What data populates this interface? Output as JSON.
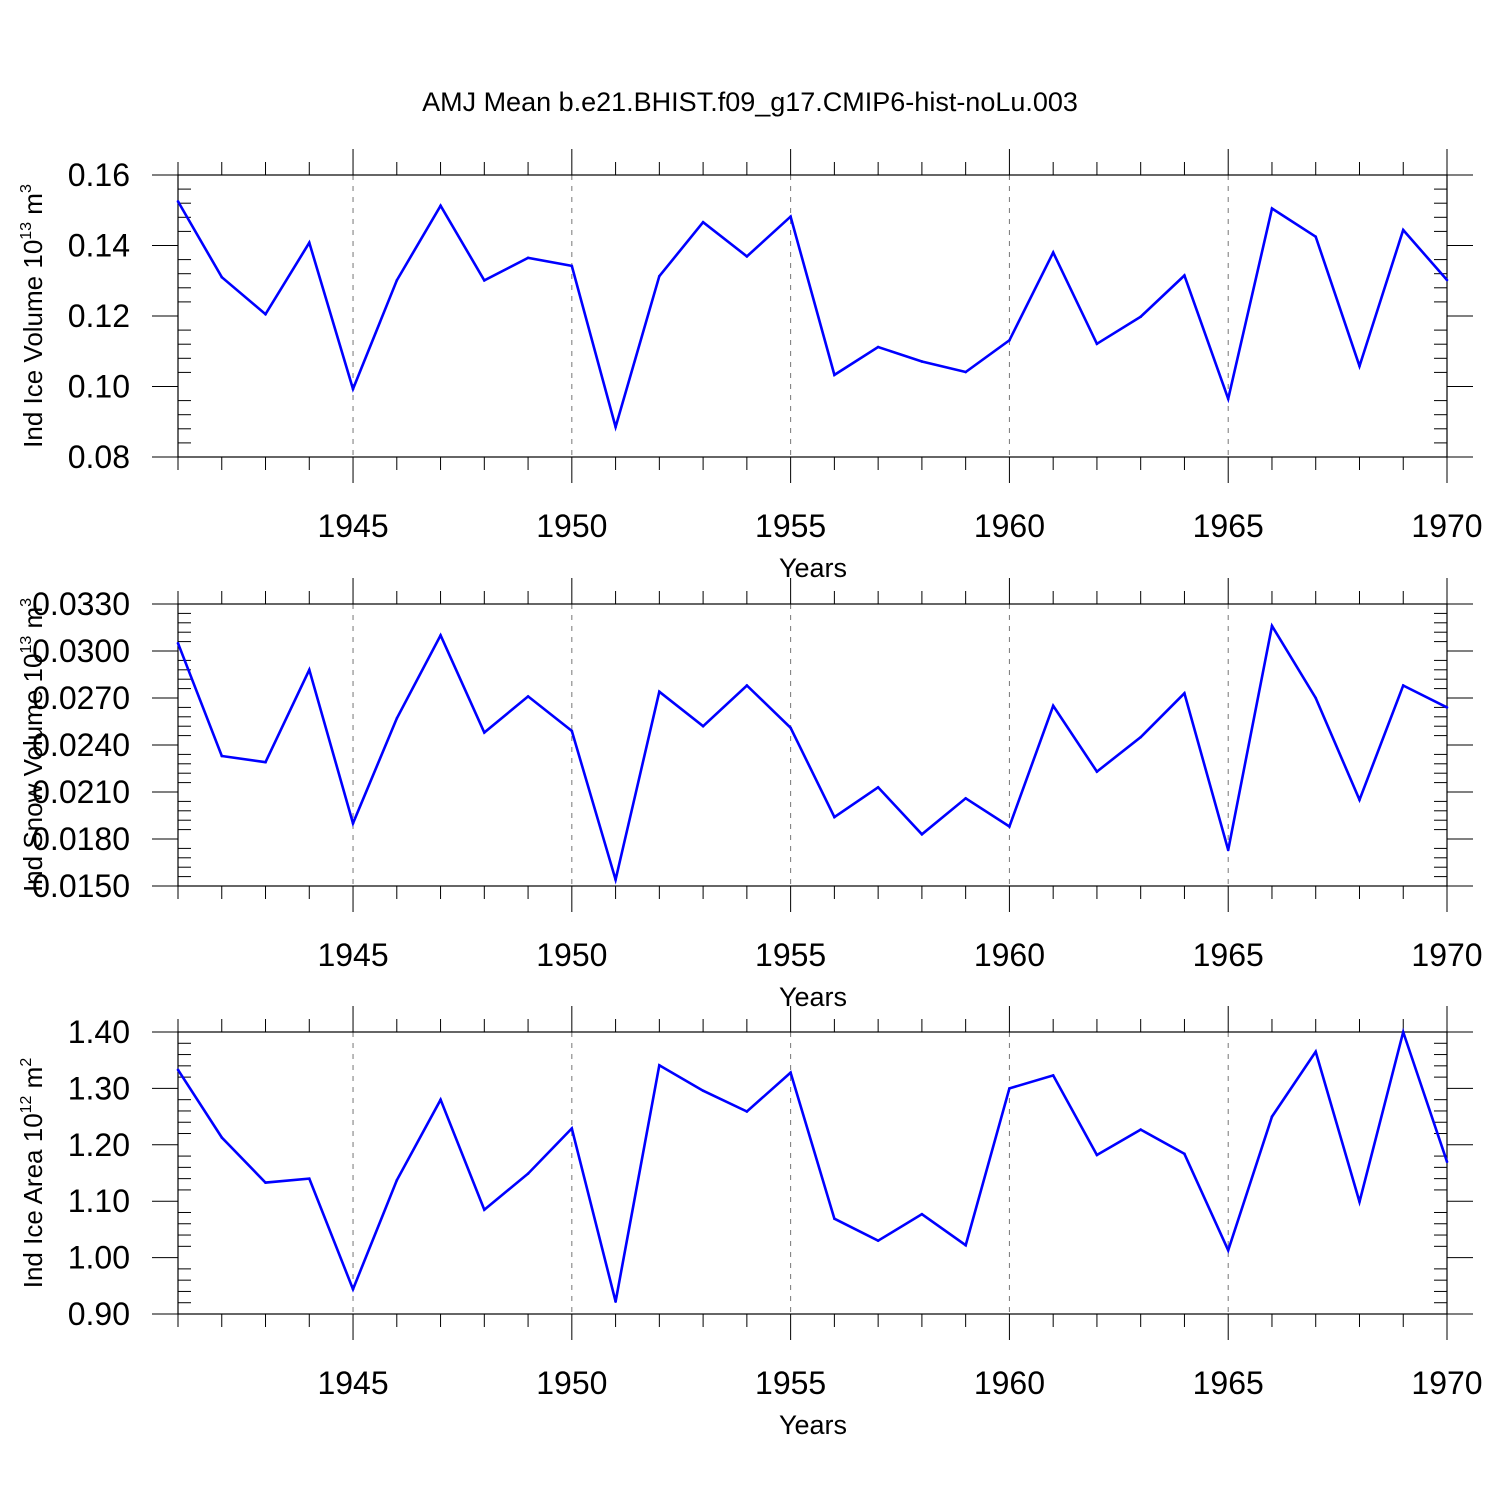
{
  "title": "AMJ Mean b.e21.BHIST.f09_g17.CMIP6-hist-noLu.003",
  "colors": {
    "series": "#0000ff",
    "axes": "#000000",
    "grid": "#777777"
  },
  "chart_data": [
    {
      "type": "line",
      "ylabel": {
        "base": "Ind Ice Volume 10",
        "exp": "13",
        "unit": " m",
        "unit_exp": "3"
      },
      "xlabel": "Years",
      "xlim": [
        1941,
        1970
      ],
      "ylim": [
        0.08,
        0.16
      ],
      "yticks": [
        "0.08",
        "0.10",
        "0.12",
        "0.14",
        "0.16"
      ],
      "xticks": [
        "1945",
        "1950",
        "1955",
        "1960",
        "1965",
        "1970"
      ],
      "grid": "vertical dashed at major x ticks",
      "x": [
        1941,
        1942,
        1943,
        1944,
        1945,
        1946,
        1947,
        1948,
        1949,
        1950,
        1951,
        1952,
        1953,
        1954,
        1955,
        1956,
        1957,
        1958,
        1959,
        1960,
        1961,
        1962,
        1963,
        1964,
        1965,
        1966,
        1967,
        1968,
        1969,
        1970
      ],
      "values": [
        0.1525,
        0.131,
        0.1205,
        0.1408,
        0.0993,
        0.1301,
        0.1513,
        0.1301,
        0.1365,
        0.1342,
        0.0885,
        0.1313,
        0.1466,
        0.1369,
        0.1482,
        0.1033,
        0.1112,
        0.1071,
        0.1041,
        0.1131,
        0.138,
        0.1121,
        0.1198,
        0.1315,
        0.0965,
        0.1505,
        0.1425,
        0.1058,
        0.1444,
        0.1302
      ]
    },
    {
      "type": "line",
      "ylabel": {
        "base": "Ind Snow Volume 10",
        "exp": "13",
        "unit": " m",
        "unit_exp": "3"
      },
      "xlabel": "Years",
      "xlim": [
        1941,
        1970
      ],
      "ylim": [
        0.015,
        0.033
      ],
      "yticks": [
        "0.0150",
        "0.0180",
        "0.0210",
        "0.0240",
        "0.0270",
        "0.0300",
        "0.0330"
      ],
      "xticks": [
        "1945",
        "1950",
        "1955",
        "1960",
        "1965",
        "1970"
      ],
      "grid": "vertical dashed at major x ticks",
      "x": [
        1941,
        1942,
        1943,
        1944,
        1945,
        1946,
        1947,
        1948,
        1949,
        1950,
        1951,
        1952,
        1953,
        1954,
        1955,
        1956,
        1957,
        1958,
        1959,
        1960,
        1961,
        1962,
        1963,
        1964,
        1965,
        1966,
        1967,
        1968,
        1969,
        1970
      ],
      "values": [
        0.0305,
        0.0233,
        0.0229,
        0.0288,
        0.019,
        0.0257,
        0.031,
        0.0248,
        0.0271,
        0.0249,
        0.0154,
        0.0274,
        0.0252,
        0.0278,
        0.0251,
        0.0194,
        0.0213,
        0.0183,
        0.0206,
        0.0188,
        0.0265,
        0.0223,
        0.0245,
        0.0273,
        0.0173,
        0.0316,
        0.027,
        0.0205,
        0.0278,
        0.0264
      ]
    },
    {
      "type": "line",
      "ylabel": {
        "base": "Ind Ice Area 10",
        "exp": "12",
        "unit": " m",
        "unit_exp": "2"
      },
      "xlabel": "Years",
      "xlim": [
        1941,
        1970
      ],
      "ylim": [
        0.9,
        1.4
      ],
      "yticks": [
        "0.90",
        "1.00",
        "1.10",
        "1.20",
        "1.30",
        "1.40"
      ],
      "xticks": [
        "1945",
        "1950",
        "1955",
        "1960",
        "1965",
        "1970"
      ],
      "grid": "vertical dashed at major x ticks",
      "x": [
        1941,
        1942,
        1943,
        1944,
        1945,
        1946,
        1947,
        1948,
        1949,
        1950,
        1951,
        1952,
        1953,
        1954,
        1955,
        1956,
        1957,
        1958,
        1959,
        1960,
        1961,
        1962,
        1963,
        1964,
        1965,
        1966,
        1967,
        1968,
        1969,
        1970
      ],
      "values": [
        1.333,
        1.213,
        1.133,
        1.14,
        0.944,
        1.137,
        1.28,
        1.085,
        1.149,
        1.229,
        0.922,
        1.341,
        1.296,
        1.259,
        1.328,
        1.069,
        1.03,
        1.077,
        1.022,
        1.3,
        1.323,
        1.182,
        1.227,
        1.184,
        1.013,
        1.25,
        1.365,
        1.099,
        1.4,
        1.17
      ]
    }
  ]
}
